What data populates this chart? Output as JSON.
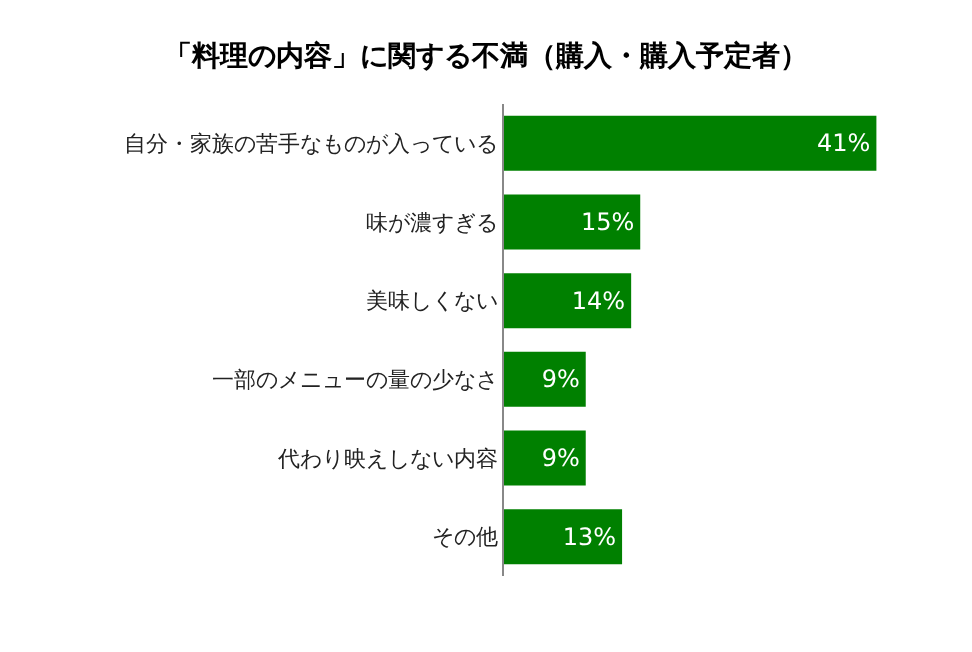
{
  "chart_data": {
    "type": "bar",
    "orientation": "horizontal",
    "title": "「料理の内容」に関する不満（購入・購入予定者）",
    "categories": [
      "自分・家族の苦手なものが入っている",
      "味が濃すぎる",
      "美味しくない",
      "一部のメニューの量の少なさ",
      "代わり映えしない内容",
      "その他"
    ],
    "values": [
      41,
      15,
      14,
      9,
      9,
      13
    ],
    "value_labels": [
      "41%",
      "15%",
      "14%",
      "9%",
      "9%",
      "13%"
    ],
    "color": "#008000",
    "grid": false,
    "legend": false
  }
}
